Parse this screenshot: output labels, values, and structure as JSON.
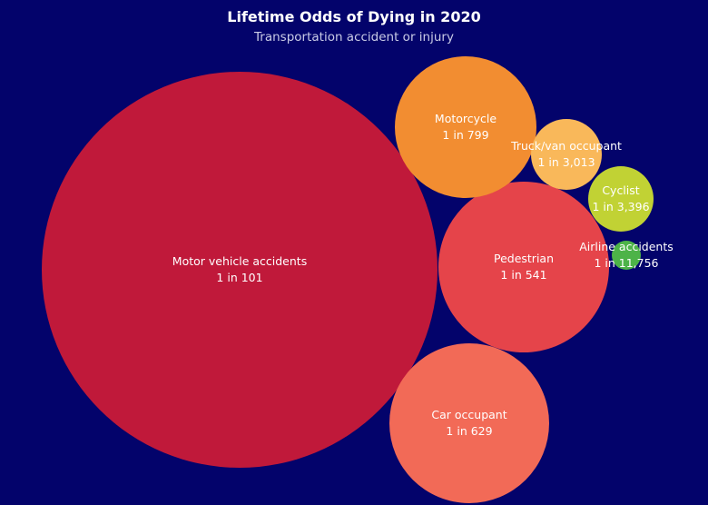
{
  "chart_data": {
    "type": "bubble",
    "title": "Lifetime Odds of Dying in 2020",
    "subtitle": "Transportation accident or injury",
    "odds_prefix": "1 in",
    "series": [
      {
        "name": "Motor vehicle accidents",
        "odds_text": "1 in 101",
        "odds": 101,
        "color": "#c0193a"
      },
      {
        "name": "Motorcycle",
        "odds_text": "1 in 799",
        "odds": 799,
        "color": "#f28d31"
      },
      {
        "name": "Truck/van occupant",
        "odds_text": "1 in 3,013",
        "odds": 3013,
        "color": "#f9b85a"
      },
      {
        "name": "Cyclist",
        "odds_text": "1 in 3,396",
        "odds": 3396,
        "color": "#c1d234"
      },
      {
        "name": "Airline accidents",
        "odds_text": "1 in 11,756",
        "odds": 11756,
        "color": "#4db348"
      },
      {
        "name": "Pedestrian",
        "odds_text": "1 in 541",
        "odds": 541,
        "color": "#e5444a"
      },
      {
        "name": "Car occupant",
        "odds_text": "1 in 629",
        "odds": 629,
        "color": "#f26a57"
      }
    ]
  }
}
